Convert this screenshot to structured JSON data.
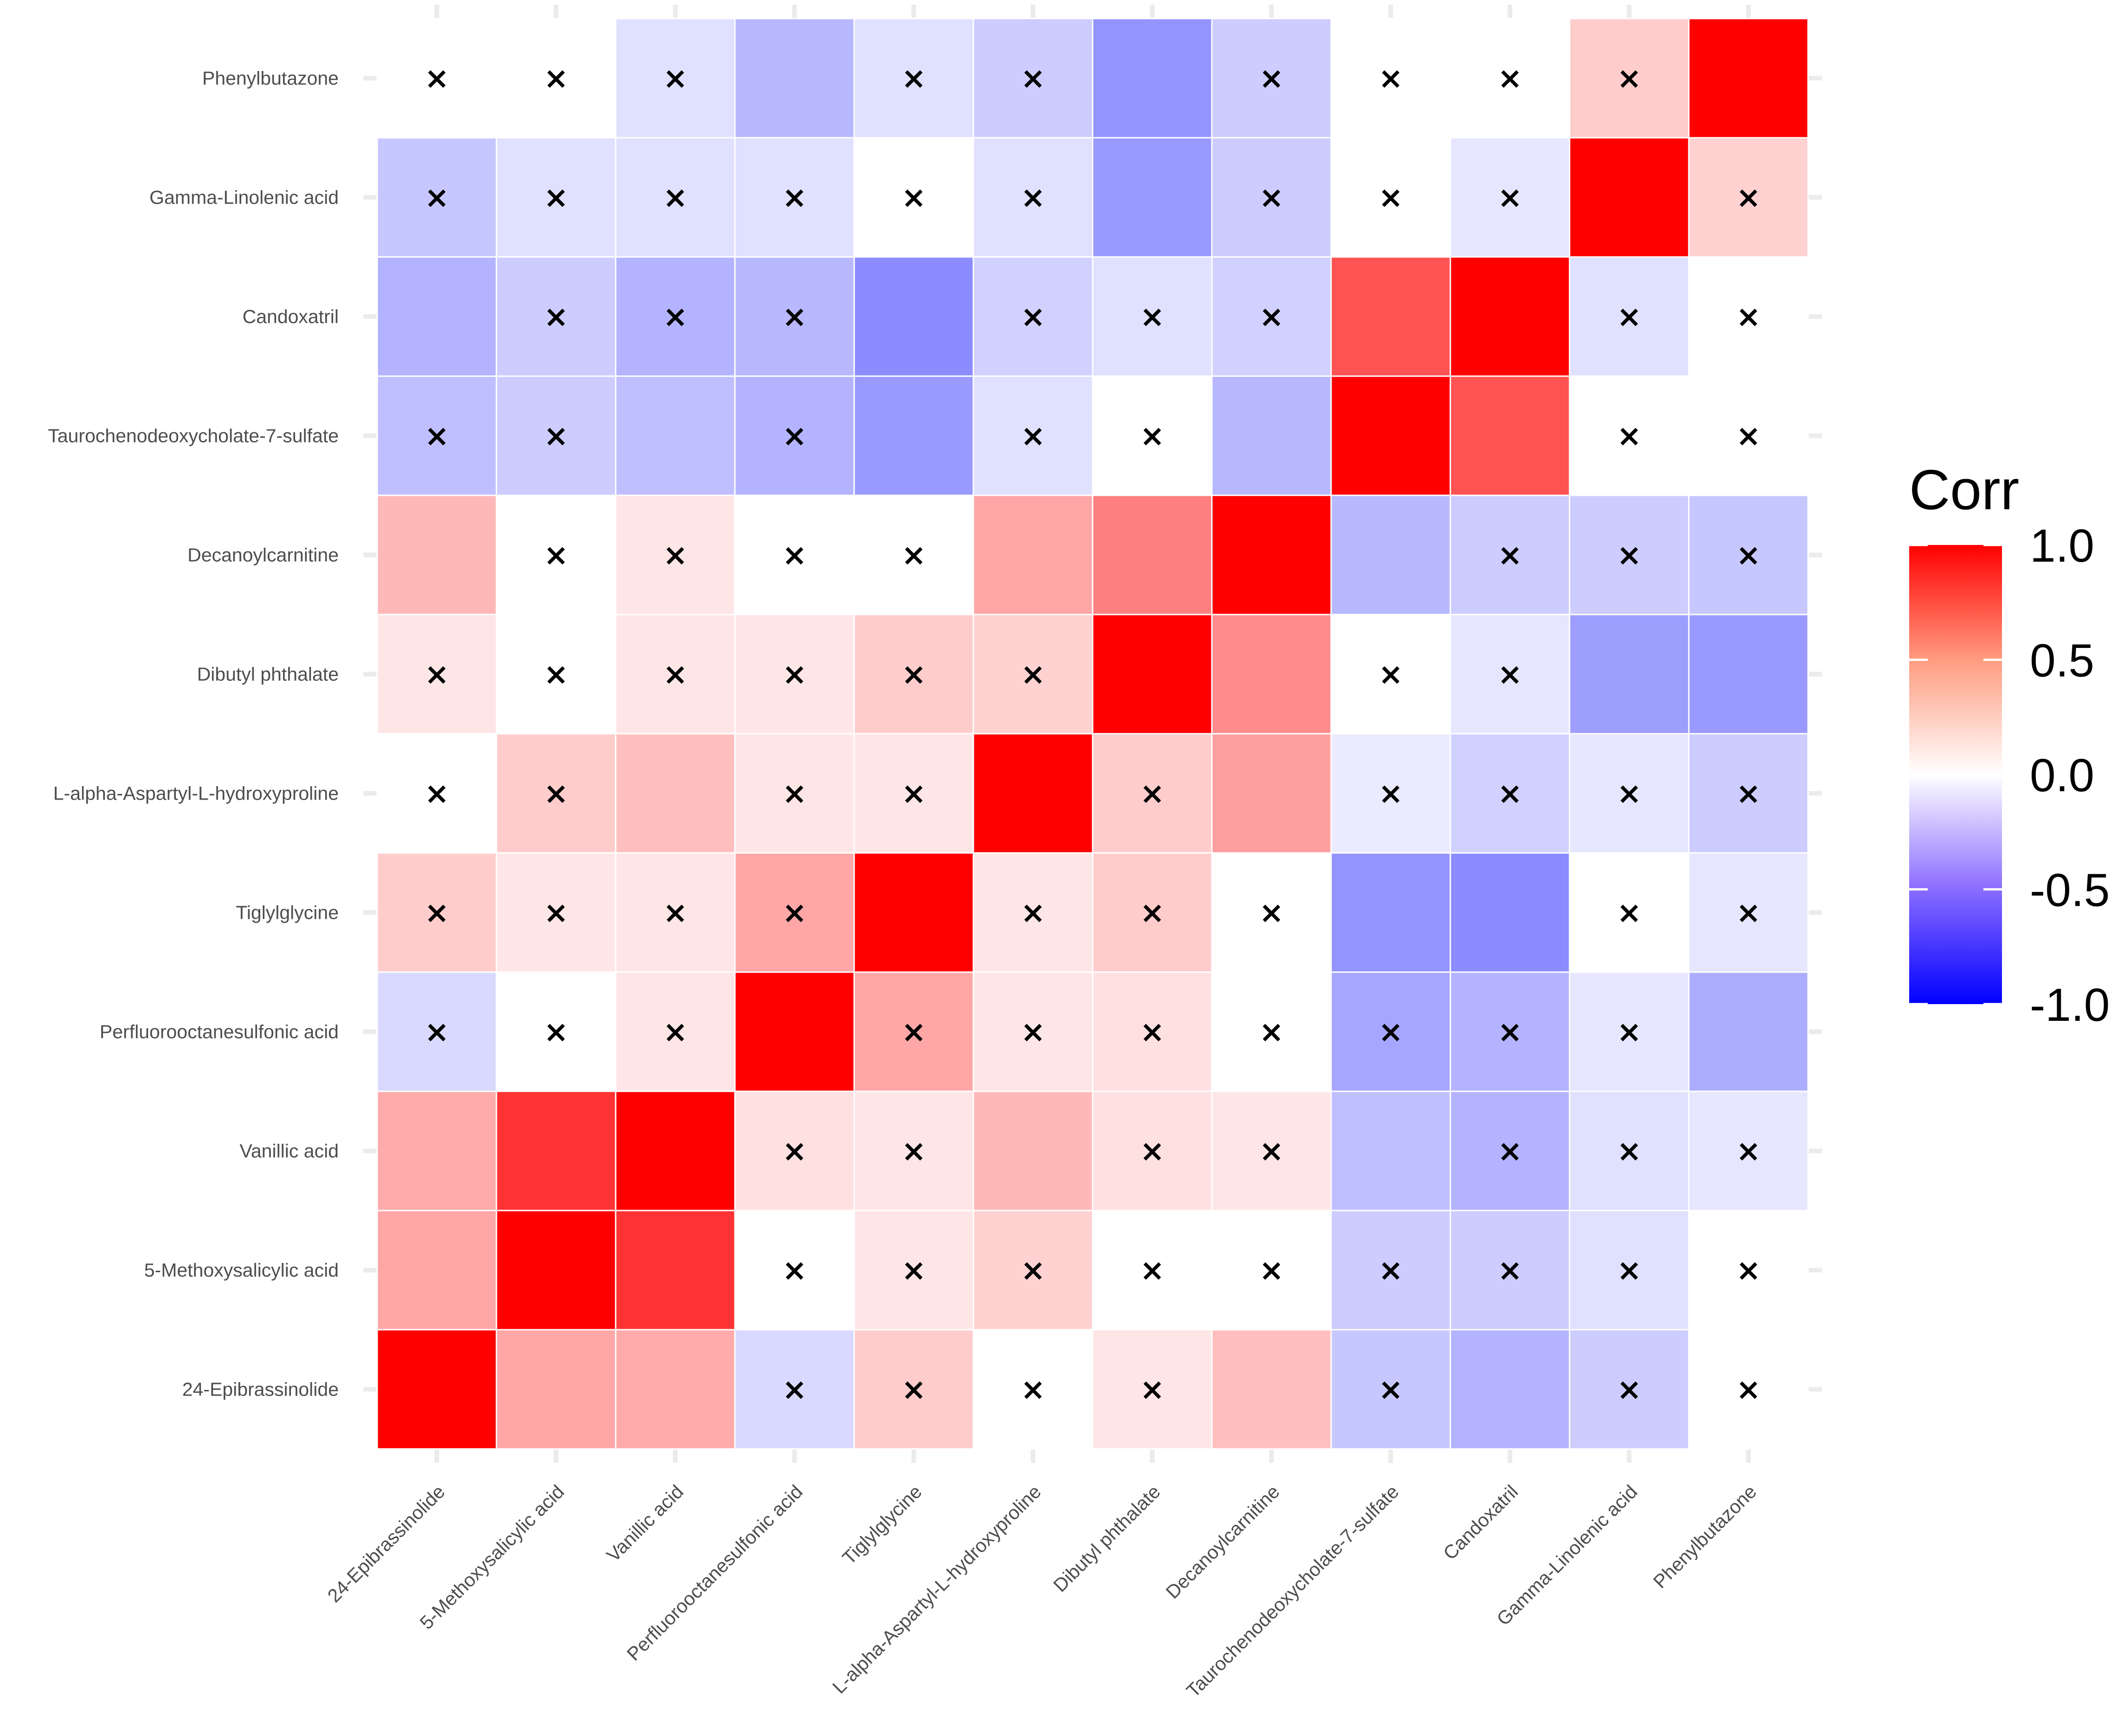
{
  "chart_data": {
    "type": "heatmap",
    "title": "",
    "xlabel": "",
    "ylabel": "",
    "variables": [
      "24-Epibrassinolide",
      "5-Methoxysalicylic acid",
      "Vanillic acid",
      "Perfluorooctanesulfonic acid",
      "Tiglylglycine",
      "L-alpha-Aspartyl-L-hydroxyproline",
      "Dibutyl phthalate",
      "Decanoylcarnitine",
      "Taurochenodeoxycholate-7-sulfate",
      "Candoxatril",
      "Gamma-Linolenic acid",
      "Phenylbutazone"
    ],
    "matrix": [
      [
        1.0,
        0.35,
        0.33,
        -0.15,
        0.2,
        0.0,
        0.1,
        0.25,
        -0.22,
        -0.3,
        -0.2,
        0.0
      ],
      [
        0.35,
        1.0,
        0.8,
        0.0,
        0.1,
        0.18,
        0.0,
        0.0,
        -0.2,
        -0.2,
        -0.12,
        0.0
      ],
      [
        0.33,
        0.8,
        1.0,
        0.12,
        0.1,
        0.28,
        0.12,
        0.1,
        -0.25,
        -0.3,
        -0.12,
        -0.1
      ],
      [
        -0.15,
        0.0,
        0.1,
        1.0,
        0.35,
        0.1,
        0.12,
        0.0,
        -0.35,
        -0.3,
        -0.1,
        -0.32
      ],
      [
        0.2,
        0.1,
        0.1,
        0.35,
        1.0,
        0.1,
        0.2,
        0.0,
        -0.42,
        -0.45,
        0.0,
        -0.1
      ],
      [
        0.0,
        0.2,
        0.25,
        0.1,
        0.1,
        1.0,
        0.2,
        0.38,
        -0.08,
        -0.18,
        -0.1,
        -0.2
      ],
      [
        0.1,
        0.0,
        0.1,
        0.1,
        0.2,
        0.18,
        1.0,
        0.45,
        0.0,
        -0.1,
        -0.38,
        -0.4
      ],
      [
        0.28,
        0.0,
        0.1,
        0.0,
        0.0,
        0.35,
        0.5,
        1.0,
        -0.28,
        -0.2,
        -0.2,
        -0.22
      ],
      [
        -0.25,
        -0.2,
        -0.25,
        -0.3,
        -0.4,
        -0.12,
        0.0,
        -0.28,
        1.0,
        0.68,
        0.0,
        0.0
      ],
      [
        -0.3,
        -0.2,
        -0.3,
        -0.28,
        -0.45,
        -0.18,
        -0.12,
        -0.18,
        0.68,
        1.0,
        -0.12,
        0.0
      ],
      [
        -0.22,
        -0.12,
        -0.12,
        -0.12,
        0.0,
        -0.12,
        -0.4,
        -0.2,
        0.0,
        -0.1,
        1.0,
        0.18
      ],
      [
        0.0,
        0.0,
        -0.12,
        -0.28,
        -0.12,
        -0.2,
        -0.42,
        -0.2,
        0.0,
        0.0,
        0.2,
        1.0
      ]
    ],
    "not_significant": [
      [
        0,
        0,
        0,
        1,
        1,
        1,
        1,
        0,
        1,
        0,
        1,
        1
      ],
      [
        0,
        0,
        0,
        1,
        1,
        1,
        1,
        1,
        1,
        1,
        1,
        1
      ],
      [
        0,
        0,
        0,
        1,
        1,
        0,
        1,
        1,
        0,
        1,
        1,
        1
      ],
      [
        1,
        1,
        1,
        0,
        1,
        1,
        1,
        1,
        1,
        1,
        1,
        0
      ],
      [
        1,
        1,
        1,
        1,
        0,
        1,
        1,
        1,
        0,
        0,
        1,
        1
      ],
      [
        1,
        1,
        0,
        1,
        1,
        0,
        1,
        0,
        1,
        1,
        1,
        1
      ],
      [
        1,
        1,
        1,
        1,
        1,
        1,
        0,
        0,
        1,
        1,
        0,
        0
      ],
      [
        0,
        1,
        1,
        1,
        1,
        0,
        0,
        0,
        0,
        1,
        1,
        1
      ],
      [
        1,
        1,
        0,
        1,
        0,
        1,
        1,
        0,
        0,
        0,
        1,
        1
      ],
      [
        0,
        1,
        1,
        1,
        0,
        1,
        1,
        1,
        0,
        0,
        1,
        1
      ],
      [
        1,
        1,
        1,
        1,
        1,
        1,
        0,
        1,
        1,
        1,
        0,
        1
      ],
      [
        1,
        1,
        1,
        0,
        1,
        1,
        0,
        1,
        1,
        1,
        1,
        0
      ]
    ],
    "not_significant_marker": "×",
    "color_scale": {
      "low": "#0000ff",
      "mid": "#ffffff",
      "high": "#ff0000",
      "limits": [
        -1.0,
        1.0
      ]
    },
    "legend": {
      "title": "Corr",
      "ticks": [
        "1.0",
        "0.5",
        "0.0",
        "-0.5",
        "-1.0"
      ],
      "tick_values": [
        1.0,
        0.5,
        0.0,
        -0.5,
        -1.0
      ],
      "placement": "right"
    },
    "grid": true
  }
}
